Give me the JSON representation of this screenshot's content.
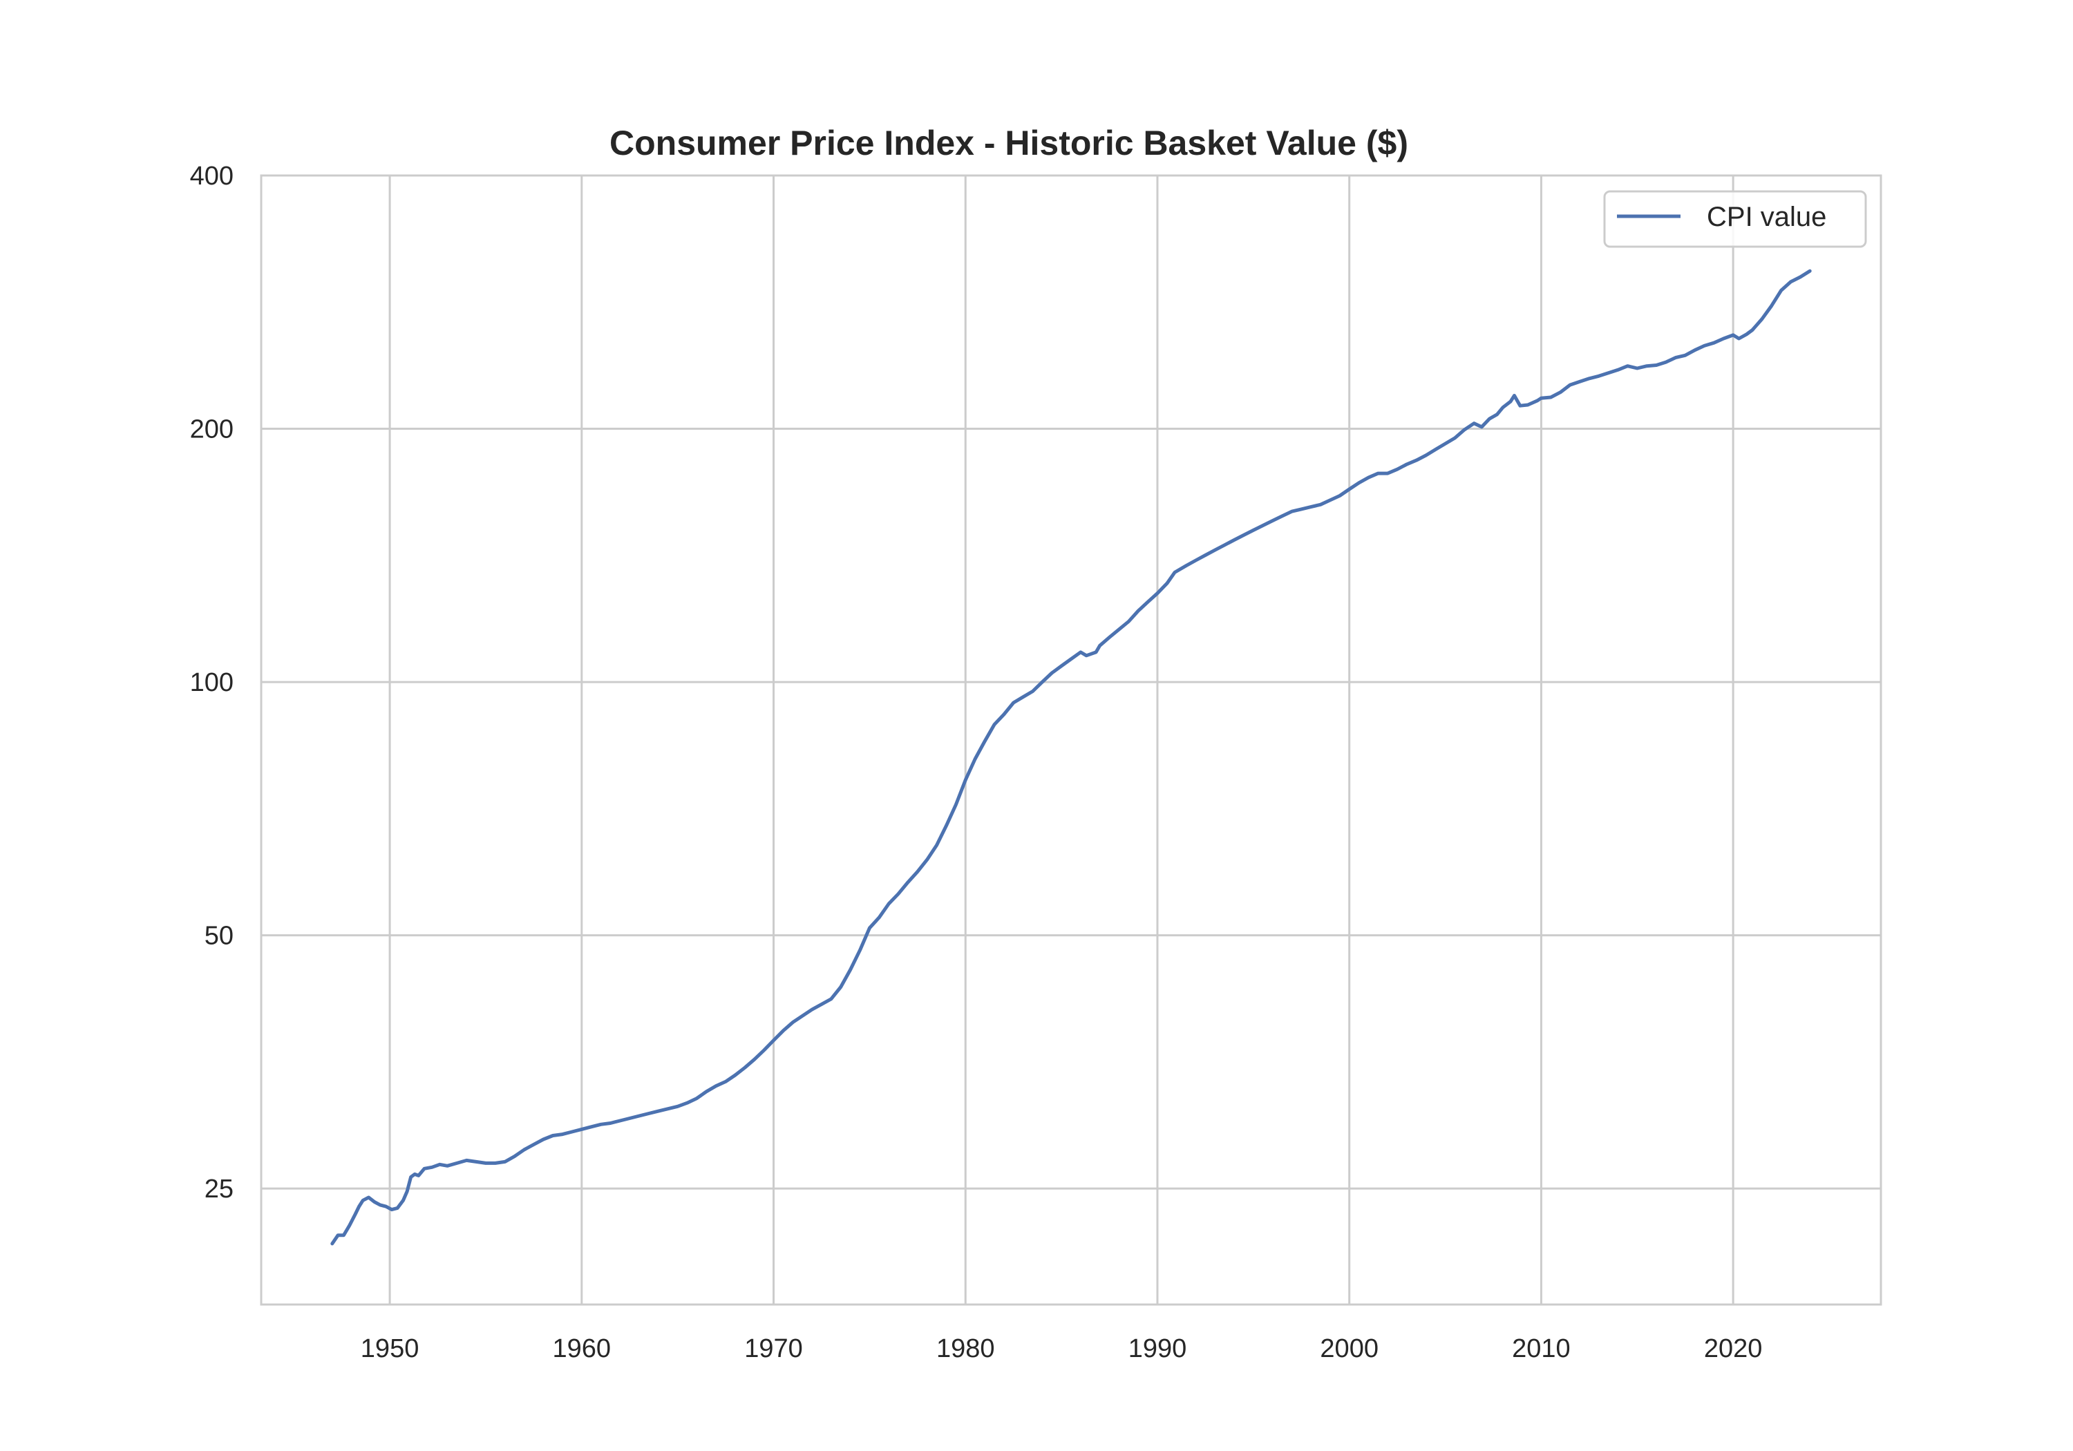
{
  "chart_data": {
    "type": "line",
    "title": "Consumer Price Index - Historic Basket Value ($)",
    "xlabel": "",
    "ylabel": "",
    "y_scale": "log",
    "xlim": [
      1943.3,
      2027.7
    ],
    "ylim": [
      18.2,
      400
    ],
    "x_ticks": [
      1950,
      1960,
      1970,
      1980,
      1990,
      2000,
      2010,
      2020
    ],
    "y_ticks": [
      25,
      50,
      100,
      200,
      400
    ],
    "grid": true,
    "legend_position": "top-right",
    "series": [
      {
        "name": "CPI value",
        "color": "#4c72b0",
        "points": [
          [
            1947.0,
            21.5
          ],
          [
            1947.3,
            22.0
          ],
          [
            1947.6,
            22.0
          ],
          [
            1947.9,
            22.6
          ],
          [
            1948.2,
            23.3
          ],
          [
            1948.4,
            23.8
          ],
          [
            1948.6,
            24.2
          ],
          [
            1948.9,
            24.4
          ],
          [
            1949.2,
            24.1
          ],
          [
            1949.5,
            23.9
          ],
          [
            1949.8,
            23.8
          ],
          [
            1950.1,
            23.6
          ],
          [
            1950.4,
            23.7
          ],
          [
            1950.7,
            24.2
          ],
          [
            1950.9,
            24.8
          ],
          [
            1951.1,
            25.8
          ],
          [
            1951.3,
            26.0
          ],
          [
            1951.5,
            25.9
          ],
          [
            1951.8,
            26.4
          ],
          [
            1952.2,
            26.5
          ],
          [
            1952.6,
            26.7
          ],
          [
            1953.0,
            26.6
          ],
          [
            1953.5,
            26.8
          ],
          [
            1954.0,
            27.0
          ],
          [
            1954.5,
            26.9
          ],
          [
            1955.0,
            26.8
          ],
          [
            1955.5,
            26.8
          ],
          [
            1956.0,
            26.9
          ],
          [
            1956.5,
            27.3
          ],
          [
            1957.0,
            27.8
          ],
          [
            1957.5,
            28.2
          ],
          [
            1958.0,
            28.6
          ],
          [
            1958.5,
            28.9
          ],
          [
            1959.0,
            29.0
          ],
          [
            1959.5,
            29.2
          ],
          [
            1960.0,
            29.4
          ],
          [
            1960.5,
            29.6
          ],
          [
            1961.0,
            29.8
          ],
          [
            1961.5,
            29.9
          ],
          [
            1962.0,
            30.1
          ],
          [
            1962.5,
            30.3
          ],
          [
            1963.0,
            30.5
          ],
          [
            1963.5,
            30.7
          ],
          [
            1964.0,
            30.9
          ],
          [
            1964.5,
            31.1
          ],
          [
            1965.0,
            31.3
          ],
          [
            1965.5,
            31.6
          ],
          [
            1966.0,
            32.0
          ],
          [
            1966.5,
            32.6
          ],
          [
            1967.0,
            33.1
          ],
          [
            1967.5,
            33.5
          ],
          [
            1968.0,
            34.1
          ],
          [
            1968.5,
            34.8
          ],
          [
            1969.0,
            35.6
          ],
          [
            1969.5,
            36.5
          ],
          [
            1970.0,
            37.5
          ],
          [
            1970.5,
            38.5
          ],
          [
            1971.0,
            39.4
          ],
          [
            1971.5,
            40.1
          ],
          [
            1972.0,
            40.8
          ],
          [
            1972.5,
            41.4
          ],
          [
            1973.0,
            42.0
          ],
          [
            1973.5,
            43.4
          ],
          [
            1974.0,
            45.5
          ],
          [
            1974.5,
            48.0
          ],
          [
            1975.0,
            51.0
          ],
          [
            1975.5,
            52.5
          ],
          [
            1976.0,
            54.5
          ],
          [
            1976.5,
            56.0
          ],
          [
            1977.0,
            57.8
          ],
          [
            1977.5,
            59.5
          ],
          [
            1978.0,
            61.5
          ],
          [
            1978.5,
            64.0
          ],
          [
            1979.0,
            67.5
          ],
          [
            1979.5,
            71.5
          ],
          [
            1980.0,
            76.5
          ],
          [
            1980.5,
            81.0
          ],
          [
            1981.0,
            85.0
          ],
          [
            1981.5,
            89.0
          ],
          [
            1982.0,
            91.5
          ],
          [
            1982.5,
            94.5
          ],
          [
            1983.0,
            96.0
          ],
          [
            1983.5,
            97.5
          ],
          [
            1984.0,
            100.0
          ],
          [
            1984.5,
            102.5
          ],
          [
            1985.0,
            104.5
          ],
          [
            1985.5,
            106.5
          ],
          [
            1986.0,
            108.5
          ],
          [
            1986.3,
            107.5
          ],
          [
            1986.8,
            108.5
          ],
          [
            1987.0,
            110.5
          ],
          [
            1987.5,
            113.0
          ],
          [
            1988.0,
            115.5
          ],
          [
            1988.5,
            118.0
          ],
          [
            1989.0,
            121.5
          ],
          [
            1989.5,
            124.5
          ],
          [
            1990.0,
            127.5
          ],
          [
            1990.5,
            131.0
          ],
          [
            1990.9,
            135.0
          ],
          [
            1991.5,
            137.5
          ],
          [
            1992.0,
            139.5
          ],
          [
            1992.5,
            141.5
          ],
          [
            1993.0,
            143.5
          ],
          [
            1993.5,
            145.5
          ],
          [
            1994.0,
            147.5
          ],
          [
            1994.5,
            149.5
          ],
          [
            1995.0,
            151.5
          ],
          [
            1995.5,
            153.5
          ],
          [
            1996.0,
            155.5
          ],
          [
            1996.5,
            157.5
          ],
          [
            1997.0,
            159.5
          ],
          [
            1997.5,
            160.5
          ],
          [
            1998.0,
            161.5
          ],
          [
            1998.5,
            162.5
          ],
          [
            1999.0,
            164.5
          ],
          [
            1999.5,
            166.5
          ],
          [
            2000.0,
            169.5
          ],
          [
            2000.5,
            172.5
          ],
          [
            2001.0,
            175.0
          ],
          [
            2001.5,
            177.0
          ],
          [
            2002.0,
            177.0
          ],
          [
            2002.5,
            179.0
          ],
          [
            2003.0,
            181.5
          ],
          [
            2003.5,
            183.5
          ],
          [
            2004.0,
            186.0
          ],
          [
            2004.5,
            189.0
          ],
          [
            2005.0,
            192.0
          ],
          [
            2005.5,
            195.0
          ],
          [
            2006.0,
            199.5
          ],
          [
            2006.5,
            203.0
          ],
          [
            2006.9,
            201.0
          ],
          [
            2007.3,
            205.5
          ],
          [
            2007.7,
            208.0
          ],
          [
            2008.0,
            212.0
          ],
          [
            2008.4,
            215.5
          ],
          [
            2008.6,
            219.0
          ],
          [
            2008.9,
            213.0
          ],
          [
            2009.3,
            213.5
          ],
          [
            2009.8,
            216.0
          ],
          [
            2010.0,
            217.5
          ],
          [
            2010.5,
            218.0
          ],
          [
            2011.0,
            221.0
          ],
          [
            2011.5,
            225.5
          ],
          [
            2012.0,
            227.5
          ],
          [
            2012.5,
            229.5
          ],
          [
            2013.0,
            231.0
          ],
          [
            2013.5,
            233.0
          ],
          [
            2014.0,
            235.0
          ],
          [
            2014.5,
            237.5
          ],
          [
            2015.0,
            236.0
          ],
          [
            2015.5,
            237.5
          ],
          [
            2016.0,
            238.0
          ],
          [
            2016.5,
            240.0
          ],
          [
            2017.0,
            243.0
          ],
          [
            2017.5,
            244.5
          ],
          [
            2018.0,
            248.0
          ],
          [
            2018.5,
            251.0
          ],
          [
            2019.0,
            253.0
          ],
          [
            2019.5,
            256.0
          ],
          [
            2020.0,
            258.5
          ],
          [
            2020.3,
            256.0
          ],
          [
            2020.7,
            259.0
          ],
          [
            2021.0,
            262.0
          ],
          [
            2021.5,
            270.0
          ],
          [
            2022.0,
            280.0
          ],
          [
            2022.5,
            292.0
          ],
          [
            2023.0,
            299.0
          ],
          [
            2023.5,
            303.0
          ],
          [
            2024.0,
            308.0
          ]
        ]
      }
    ]
  }
}
